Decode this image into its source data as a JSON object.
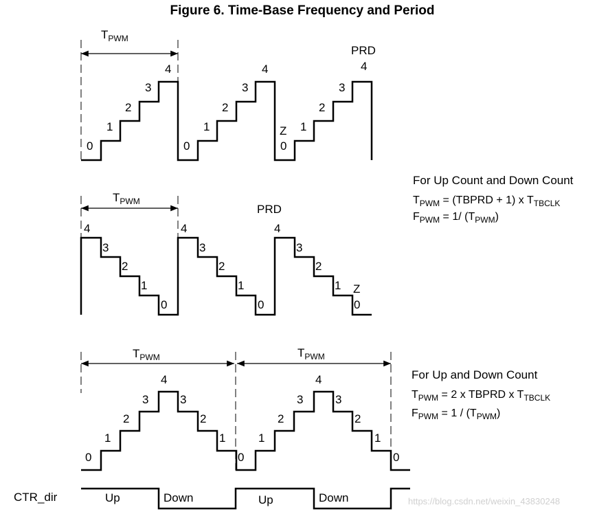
{
  "title": "Figure 6. Time-Base Frequency and Period",
  "t_pwm": {
    "main": "T",
    "sub": "PWM"
  },
  "labels": {
    "prd": "PRD",
    "z": "Z"
  },
  "steps": [
    "0",
    "1",
    "2",
    "3",
    "4"
  ],
  "up_down_count": {
    "heading": "For Up Count and Down Count",
    "t_line": {
      "t": "T",
      "t_sub": "PWM",
      "rest": " = (TBPRD + 1) x T",
      "rest_sub": "TBCLK"
    },
    "f_line": {
      "f": "F",
      "f_sub": "PWM",
      "rest": " = 1/ (T",
      "rest_sub": "PWM",
      "close": ")"
    }
  },
  "updown_count": {
    "heading": "For Up and Down Count",
    "t_line": {
      "t": "T",
      "t_sub": "PWM",
      "rest": " = 2 x TBPRD x T",
      "rest_sub": "TBCLK"
    },
    "f_line": {
      "f": "F",
      "f_sub": "PWM",
      "rest": " = 1 / (T",
      "rest_sub": "PWM",
      "close": ")"
    }
  },
  "ctr_dir": {
    "label": "CTR_dir",
    "up": "Up",
    "down": "Down"
  },
  "watermark": "https://blog.csdn.net/weixin_43830248"
}
